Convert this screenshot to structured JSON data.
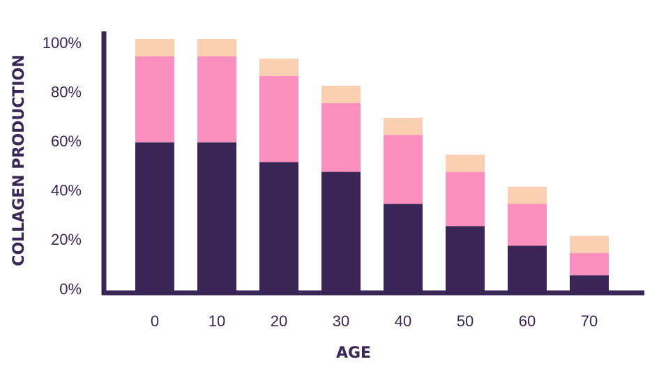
{
  "chart_data": {
    "type": "bar",
    "stacked": true,
    "categories": [
      "0",
      "10",
      "20",
      "30",
      "40",
      "50",
      "60",
      "70"
    ],
    "series": [
      {
        "values": [
          60,
          60,
          52,
          48,
          35,
          26,
          18,
          6
        ],
        "color": "#3a2656"
      },
      {
        "values": [
          35,
          35,
          35,
          28,
          28,
          22,
          17,
          9
        ],
        "color": "#fd8fbf"
      },
      {
        "values": [
          7,
          7,
          7,
          7,
          7,
          7,
          7,
          7
        ],
        "color": "#fbcfb1"
      }
    ],
    "xlabel": "AGE",
    "ylabel": "COLLAGEN PRODUCTION",
    "yticks": [
      "0%",
      "20%",
      "40%",
      "60%",
      "80%",
      "100%"
    ],
    "ytick_values": [
      0,
      20,
      40,
      60,
      80,
      100
    ],
    "ylim": [
      0,
      100
    ],
    "grid": false,
    "legend": "none"
  },
  "colors": {
    "axis": "#3a2656",
    "text": "#3a2656"
  }
}
